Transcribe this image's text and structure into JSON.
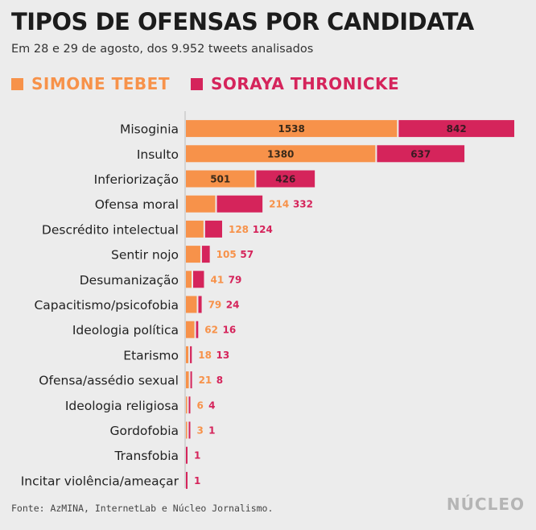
{
  "header": {
    "title": "TIPOS DE OFENSAS POR CANDIDATA",
    "subtitle": "Em 28 e 29 de agosto, dos 9.952 tweets analisados"
  },
  "footer": {
    "source": "Fonte: AzMINA, InternetLab e Núcleo Jornalismo.",
    "brand": "NÚCLEO"
  },
  "chart_data": {
    "type": "bar",
    "orientation": "horizontal",
    "stacked": true,
    "categories": [
      "Misoginia",
      "Insulto",
      "Inferiorização",
      "Ofensa moral",
      "Descrédito intelectual",
      "Sentir nojo",
      "Desumanização",
      "Capacitismo/psicofobia",
      "Ideologia política",
      "Etarismo",
      "Ofensa/assédio sexual",
      "Ideologia religiosa",
      "Gordofobia",
      "Transfobia",
      "Incitar violência/ameaçar"
    ],
    "series": [
      {
        "name": "SIMONE TEBET",
        "color": "#f7924a",
        "values": [
          1538,
          1380,
          501,
          214,
          128,
          105,
          41,
          79,
          62,
          18,
          21,
          6,
          3,
          0,
          0
        ],
        "labels": [
          "1538",
          "1380",
          "501",
          "214",
          "128",
          "105",
          "41",
          "79",
          "62",
          "18",
          "21",
          "6",
          "3",
          "",
          ""
        ]
      },
      {
        "name": "SORAYA THRONICKE",
        "color": "#d5245b",
        "values": [
          842,
          637,
          426,
          332,
          124,
          57,
          79,
          24,
          16,
          13,
          8,
          4,
          1,
          1,
          1
        ],
        "labels": [
          "842",
          "637",
          "426",
          "332",
          "124",
          "57",
          "79",
          "24",
          "16",
          "13",
          "8",
          "4",
          "1",
          "1",
          "1"
        ]
      }
    ],
    "legend": "top-left",
    "grid": false
  }
}
